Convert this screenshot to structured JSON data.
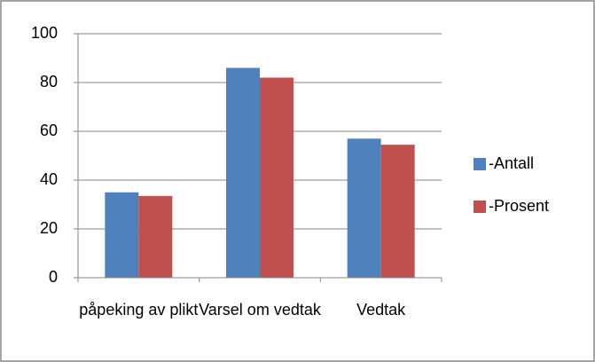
{
  "chart_data": {
    "type": "bar",
    "categories": [
      "påpeking av plikt",
      "Varsel om vedtak",
      "Vedtak"
    ],
    "series": [
      {
        "name": "-Antall",
        "color": "#4f81bd",
        "values": [
          35,
          86,
          57
        ]
      },
      {
        "name": "-Prosent",
        "color": "#c0504d",
        "values": [
          33.5,
          82,
          54.5
        ]
      }
    ],
    "ylim": [
      0,
      100
    ],
    "yticks": [
      0,
      20,
      40,
      60,
      80,
      100
    ],
    "grid": true,
    "legend": "right"
  }
}
